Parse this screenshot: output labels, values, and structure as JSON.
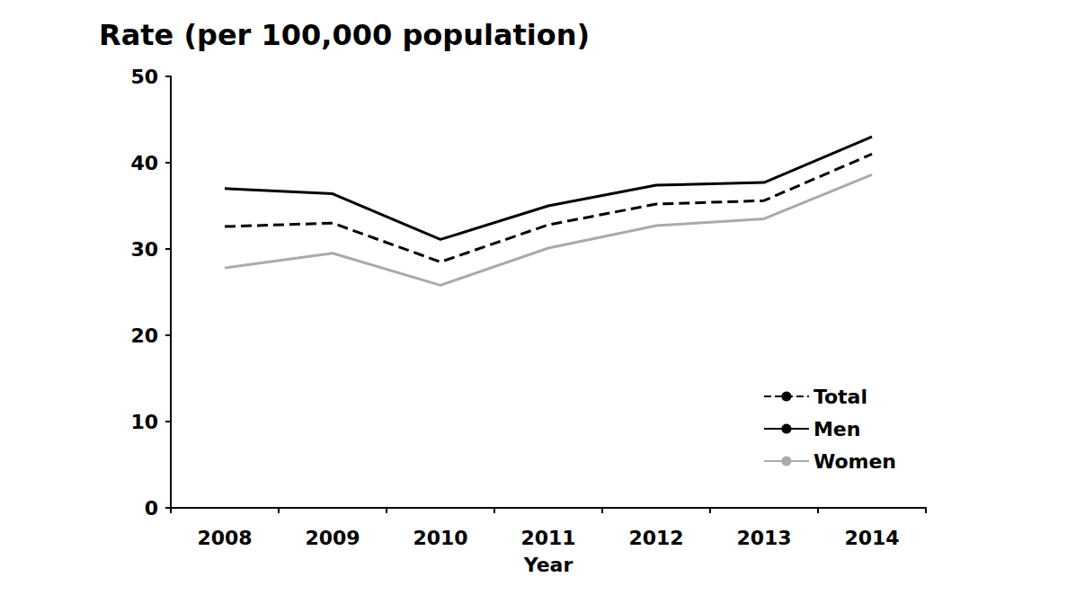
{
  "chart_data": {
    "type": "line",
    "ylabel": "Rate (per 100,000 population)",
    "xlabel": "Year",
    "categories": [
      "2008",
      "2009",
      "2010",
      "2011",
      "2012",
      "2013",
      "2014"
    ],
    "series": [
      {
        "name": "Total",
        "color": "#000000",
        "line_style": "dashed",
        "values": [
          32.6,
          33.0,
          28.5,
          32.8,
          35.2,
          35.6,
          41.0
        ]
      },
      {
        "name": "Men",
        "color": "#000000",
        "line_style": "solid",
        "values": [
          37.0,
          36.4,
          31.1,
          35.0,
          37.4,
          37.7,
          43.0
        ]
      },
      {
        "name": "Women",
        "color": "#aaaaaa",
        "line_style": "solid",
        "values": [
          27.8,
          29.5,
          25.8,
          30.1,
          32.7,
          33.5,
          38.6
        ]
      }
    ],
    "ylim": [
      0,
      50
    ],
    "yticks": [
      0,
      10,
      20,
      30,
      40,
      50
    ],
    "grid": false,
    "legend": "lower right"
  }
}
